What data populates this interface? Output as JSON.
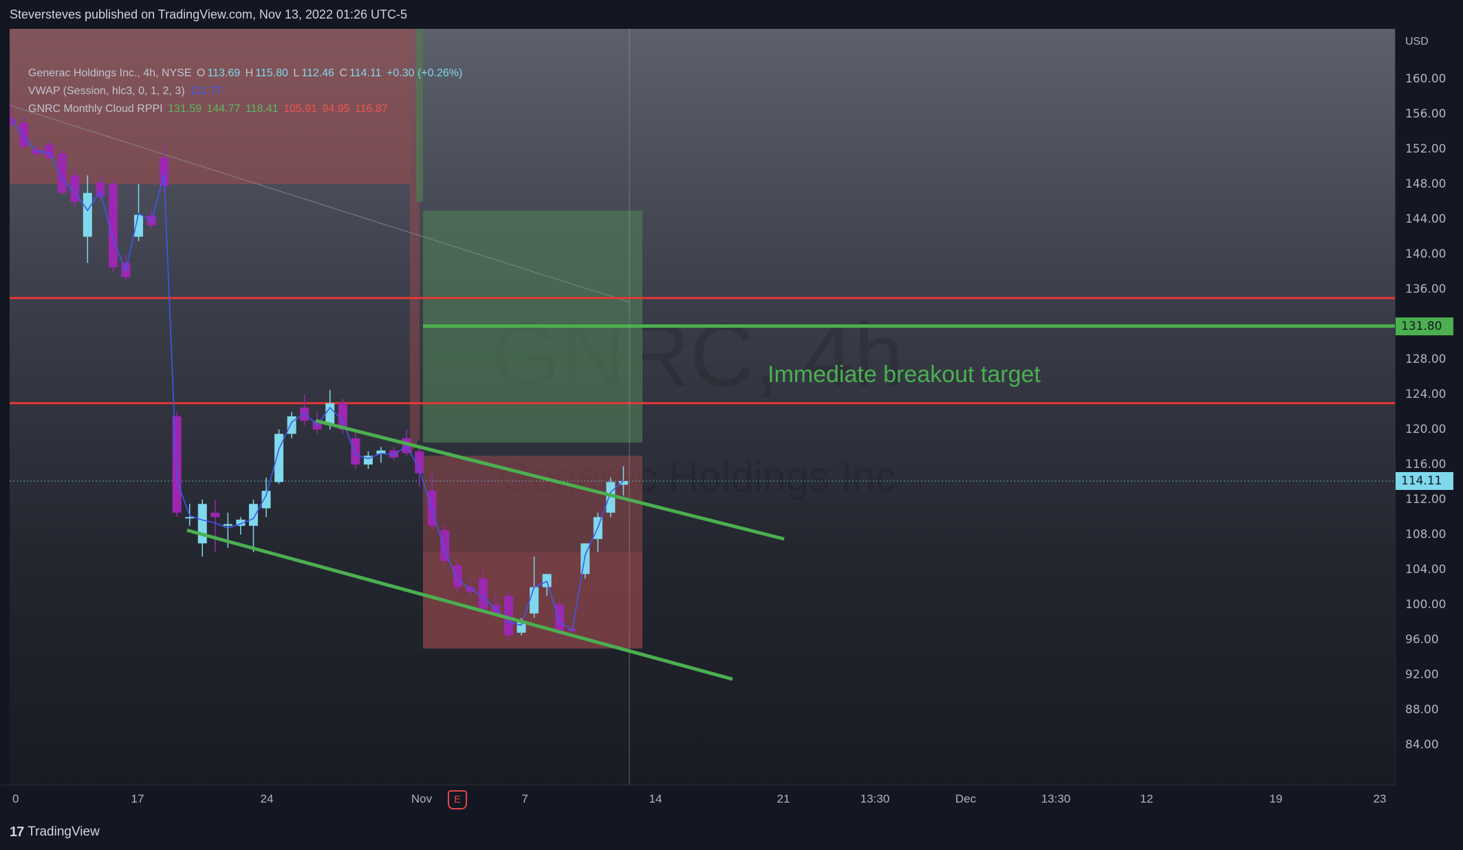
{
  "header": {
    "publish_text": "Steversteves published on TradingView.com, Nov 13, 2022 01:26 UTC-5"
  },
  "legend": {
    "symbol": "Generac Holdings Inc., 4h, NYSE",
    "o_label": "O",
    "o_value": "113.69",
    "h_label": "H",
    "h_value": "115.80",
    "l_label": "L",
    "l_value": "112.46",
    "c_label": "C",
    "c_value": "114.11",
    "change": "+0.30 (+0.26%)",
    "vwap_title": "VWAP (Session, hlc3, 0, 1, 2, 3)",
    "vwap_value": "111.77",
    "cloud_title": "GNRC Monthly Cloud RPPI",
    "cloud_values": [
      "131.59",
      "144.77",
      "118.41",
      "105.91",
      "94.95",
      "116.87"
    ]
  },
  "watermark": {
    "symbol": "GNRC, 4h",
    "name": "Generac Holdings Inc"
  },
  "annotation": {
    "text": "Immediate breakout target"
  },
  "price_axis": {
    "currency": "USD",
    "ticks": [
      "160.00",
      "156.00",
      "152.00",
      "148.00",
      "144.00",
      "140.00",
      "136.00",
      "132.00",
      "128.00",
      "124.00",
      "120.00",
      "116.00",
      "112.00",
      "108.00",
      "104.00",
      "100.00",
      "96.00",
      "92.00",
      "88.00",
      "84.00"
    ],
    "tick_values": [
      160,
      156,
      152,
      148,
      144,
      140,
      136,
      132,
      128,
      124,
      120,
      116,
      112,
      108,
      104,
      100,
      96,
      92,
      88,
      84
    ],
    "last_price": "114.11",
    "target_price": "131.80"
  },
  "time_axis": {
    "labels": [
      "0",
      "17",
      "24",
      "Nov",
      "7",
      "14",
      "21",
      "13:30",
      "Dec",
      "13:30",
      "12",
      "19",
      "23"
    ]
  },
  "earnings_marker": "E",
  "footer": {
    "brand": "TradingView",
    "logo": "17"
  },
  "colors": {
    "bull": "#7fd8ec",
    "bear": "#9c27b0",
    "support_line": "#4caf50",
    "resistance_line": "#e53935",
    "vwap": "#3f57ee",
    "cloud_red": "#a24c4f",
    "cloud_green": "#4e7b55"
  },
  "chart_data": {
    "type": "candlestick",
    "series": [
      {
        "name": "GNRC 4h",
        "candles": [
          {
            "o": 155.5,
            "h": 157.0,
            "l": 154.5,
            "c": 154.8
          },
          {
            "o": 155.0,
            "h": 155.8,
            "l": 152.0,
            "c": 152.3
          },
          {
            "o": 152.0,
            "h": 152.6,
            "l": 151.2,
            "c": 151.4
          },
          {
            "o": 152.5,
            "h": 153.0,
            "l": 150.8,
            "c": 151.0
          },
          {
            "o": 151.5,
            "h": 152.0,
            "l": 146.8,
            "c": 147.0
          },
          {
            "o": 149.0,
            "h": 149.8,
            "l": 145.5,
            "c": 146.0
          },
          {
            "o": 142.0,
            "h": 149.0,
            "l": 139.0,
            "c": 147.0
          },
          {
            "o": 148.2,
            "h": 149.0,
            "l": 146.0,
            "c": 146.6
          },
          {
            "o": 148.0,
            "h": 148.5,
            "l": 138.0,
            "c": 138.5
          },
          {
            "o": 139.0,
            "h": 140.0,
            "l": 137.0,
            "c": 137.4
          },
          {
            "o": 142.0,
            "h": 148.0,
            "l": 141.5,
            "c": 144.5
          },
          {
            "o": 144.4,
            "h": 145.0,
            "l": 143.0,
            "c": 143.3
          },
          {
            "o": 151.0,
            "h": 152.5,
            "l": 147.0,
            "c": 147.8
          },
          {
            "o": 121.5,
            "h": 122.0,
            "l": 110.0,
            "c": 110.5
          },
          {
            "o": 110.0,
            "h": 111.5,
            "l": 109.0,
            "c": 110.0
          },
          {
            "o": 107.0,
            "h": 112.0,
            "l": 105.5,
            "c": 111.5
          },
          {
            "o": 110.5,
            "h": 112.0,
            "l": 106.0,
            "c": 110.0
          },
          {
            "o": 109.0,
            "h": 110.5,
            "l": 106.5,
            "c": 109.2
          },
          {
            "o": 109.0,
            "h": 110.0,
            "l": 108.0,
            "c": 109.7
          },
          {
            "o": 109.0,
            "h": 112.0,
            "l": 106.0,
            "c": 111.5
          },
          {
            "o": 111.0,
            "h": 114.5,
            "l": 110.0,
            "c": 113.0
          },
          {
            "o": 114.0,
            "h": 120.0,
            "l": 113.8,
            "c": 119.5
          },
          {
            "o": 119.5,
            "h": 122.0,
            "l": 119.0,
            "c": 121.5
          },
          {
            "o": 122.5,
            "h": 124.0,
            "l": 120.5,
            "c": 121.0
          },
          {
            "o": 121.0,
            "h": 122.0,
            "l": 119.5,
            "c": 120.0
          },
          {
            "o": 120.5,
            "h": 124.5,
            "l": 120.0,
            "c": 123.0
          },
          {
            "o": 123.0,
            "h": 123.5,
            "l": 119.5,
            "c": 120.0
          },
          {
            "o": 119.0,
            "h": 119.8,
            "l": 115.5,
            "c": 116.0
          },
          {
            "o": 116.0,
            "h": 117.5,
            "l": 115.5,
            "c": 117.0
          },
          {
            "o": 117.2,
            "h": 118.0,
            "l": 116.2,
            "c": 117.6
          },
          {
            "o": 117.6,
            "h": 118.0,
            "l": 116.5,
            "c": 116.8
          },
          {
            "o": 119.0,
            "h": 120.0,
            "l": 117.0,
            "c": 117.3
          },
          {
            "o": 117.5,
            "h": 118.0,
            "l": 113.5,
            "c": 115.0
          },
          {
            "o": 113.0,
            "h": 115.0,
            "l": 108.5,
            "c": 109.0
          },
          {
            "o": 108.5,
            "h": 109.0,
            "l": 104.5,
            "c": 105.0
          },
          {
            "o": 104.5,
            "h": 105.0,
            "l": 101.5,
            "c": 102.0
          },
          {
            "o": 102.0,
            "h": 103.0,
            "l": 101.0,
            "c": 101.5
          },
          {
            "o": 103.0,
            "h": 104.0,
            "l": 99.0,
            "c": 99.5
          },
          {
            "o": 100.0,
            "h": 101.0,
            "l": 98.5,
            "c": 99.0
          },
          {
            "o": 101.0,
            "h": 101.5,
            "l": 96.0,
            "c": 96.5
          },
          {
            "o": 96.8,
            "h": 98.5,
            "l": 96.5,
            "c": 98.0
          },
          {
            "o": 99.0,
            "h": 105.5,
            "l": 98.5,
            "c": 102.0
          },
          {
            "o": 102.0,
            "h": 103.5,
            "l": 101.0,
            "c": 103.5
          },
          {
            "o": 100.0,
            "h": 100.5,
            "l": 96.5,
            "c": 97.0
          },
          {
            "o": 97.2,
            "h": 97.5,
            "l": 96.8,
            "c": 97.0
          },
          {
            "o": 103.5,
            "h": 107.0,
            "l": 103.0,
            "c": 107.0
          },
          {
            "o": 107.5,
            "h": 110.5,
            "l": 106.0,
            "c": 110.0
          },
          {
            "o": 110.5,
            "h": 114.5,
            "l": 110.0,
            "c": 114.0
          },
          {
            "o": 113.69,
            "h": 115.8,
            "l": 112.46,
            "c": 114.11
          }
        ]
      }
    ],
    "levels": {
      "resistance": [
        135.0,
        123.0
      ],
      "target": 131.8
    },
    "ylim": [
      80,
      163
    ],
    "xlabel": "",
    "ylabel": "USD"
  }
}
